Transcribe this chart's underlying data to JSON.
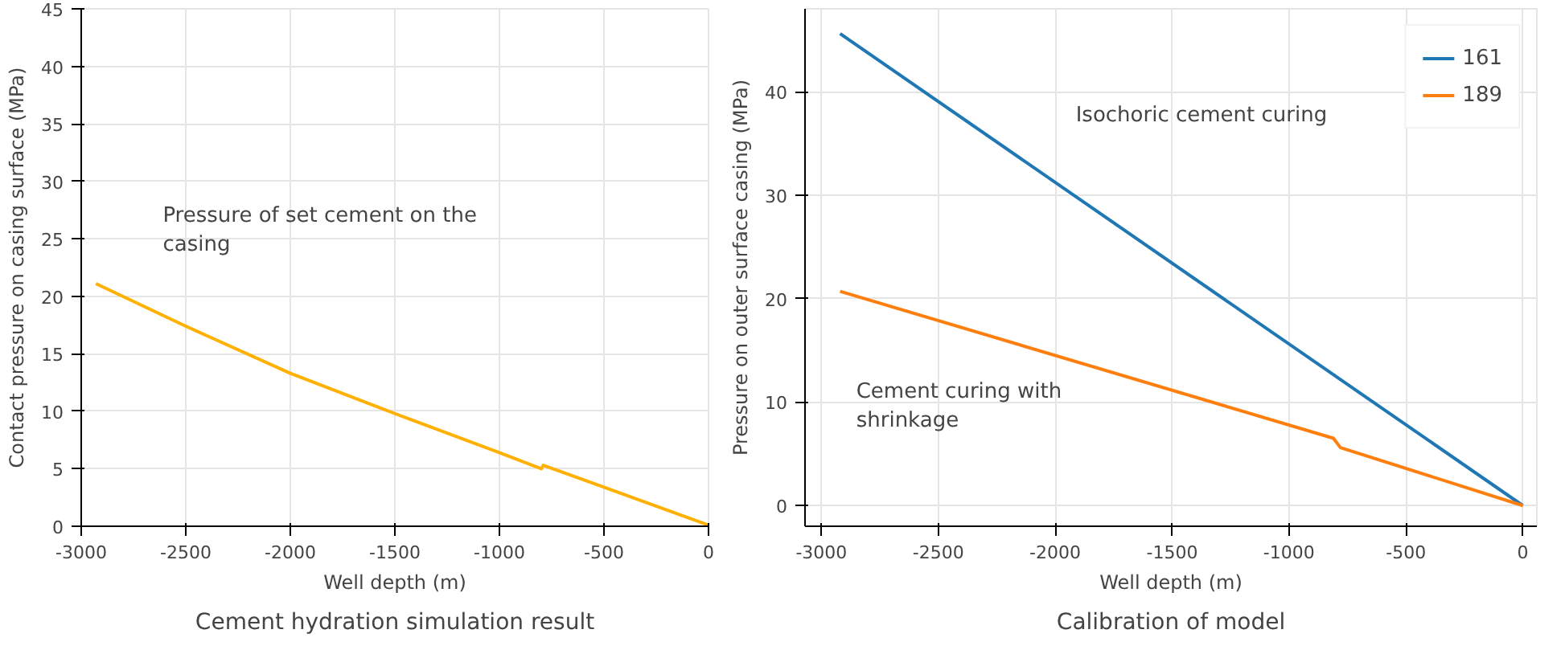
{
  "chart_data": [
    {
      "type": "line",
      "xlabel": "Well depth (m)",
      "ylabel": "Contact pressure on casing surface (MPa)",
      "xlim": [
        -3000,
        0
      ],
      "ylim": [
        0,
        45
      ],
      "xticks": [
        -3000,
        -2500,
        -2000,
        -1500,
        -1000,
        -500,
        0
      ],
      "yticks": [
        0,
        5,
        10,
        15,
        20,
        25,
        30,
        35,
        40,
        45
      ],
      "grid": true,
      "legend": false,
      "series": [
        {
          "color": "#ffb000",
          "x": [
            -2930,
            -2500,
            -2000,
            -1500,
            -1000,
            -800,
            -790,
            -500,
            0
          ],
          "values": [
            21.1,
            17.4,
            13.3,
            9.8,
            6.4,
            5.0,
            5.3,
            3.4,
            0.1
          ]
        }
      ],
      "annotations": [
        "Pressure of set cement on the casing",
        "Cement hydration simulation result"
      ]
    },
    {
      "type": "line",
      "xlabel": "Well depth (m)",
      "ylabel": "Pressure on outer surface casing (MPa)",
      "xlim": [
        -3070,
        60
      ],
      "ylim": [
        -2,
        48
      ],
      "xticks": [
        -3000,
        -2500,
        -2000,
        -1500,
        -1000,
        -500,
        0
      ],
      "yticks": [
        0,
        10,
        20,
        30,
        40
      ],
      "grid": true,
      "legend": "top right",
      "series": [
        {
          "name": "161",
          "color": "#1f77b4",
          "x": [
            -2920,
            0
          ],
          "values": [
            45.6,
            0
          ]
        },
        {
          "name": "189",
          "color": "#ff7f0e",
          "x": [
            -2920,
            -810,
            -780,
            0
          ],
          "values": [
            20.7,
            6.5,
            5.6,
            0
          ]
        }
      ],
      "annotations": [
        "Isochoric cement curing",
        "Cement curing with shrinkage",
        "Calibration of model"
      ]
    }
  ]
}
